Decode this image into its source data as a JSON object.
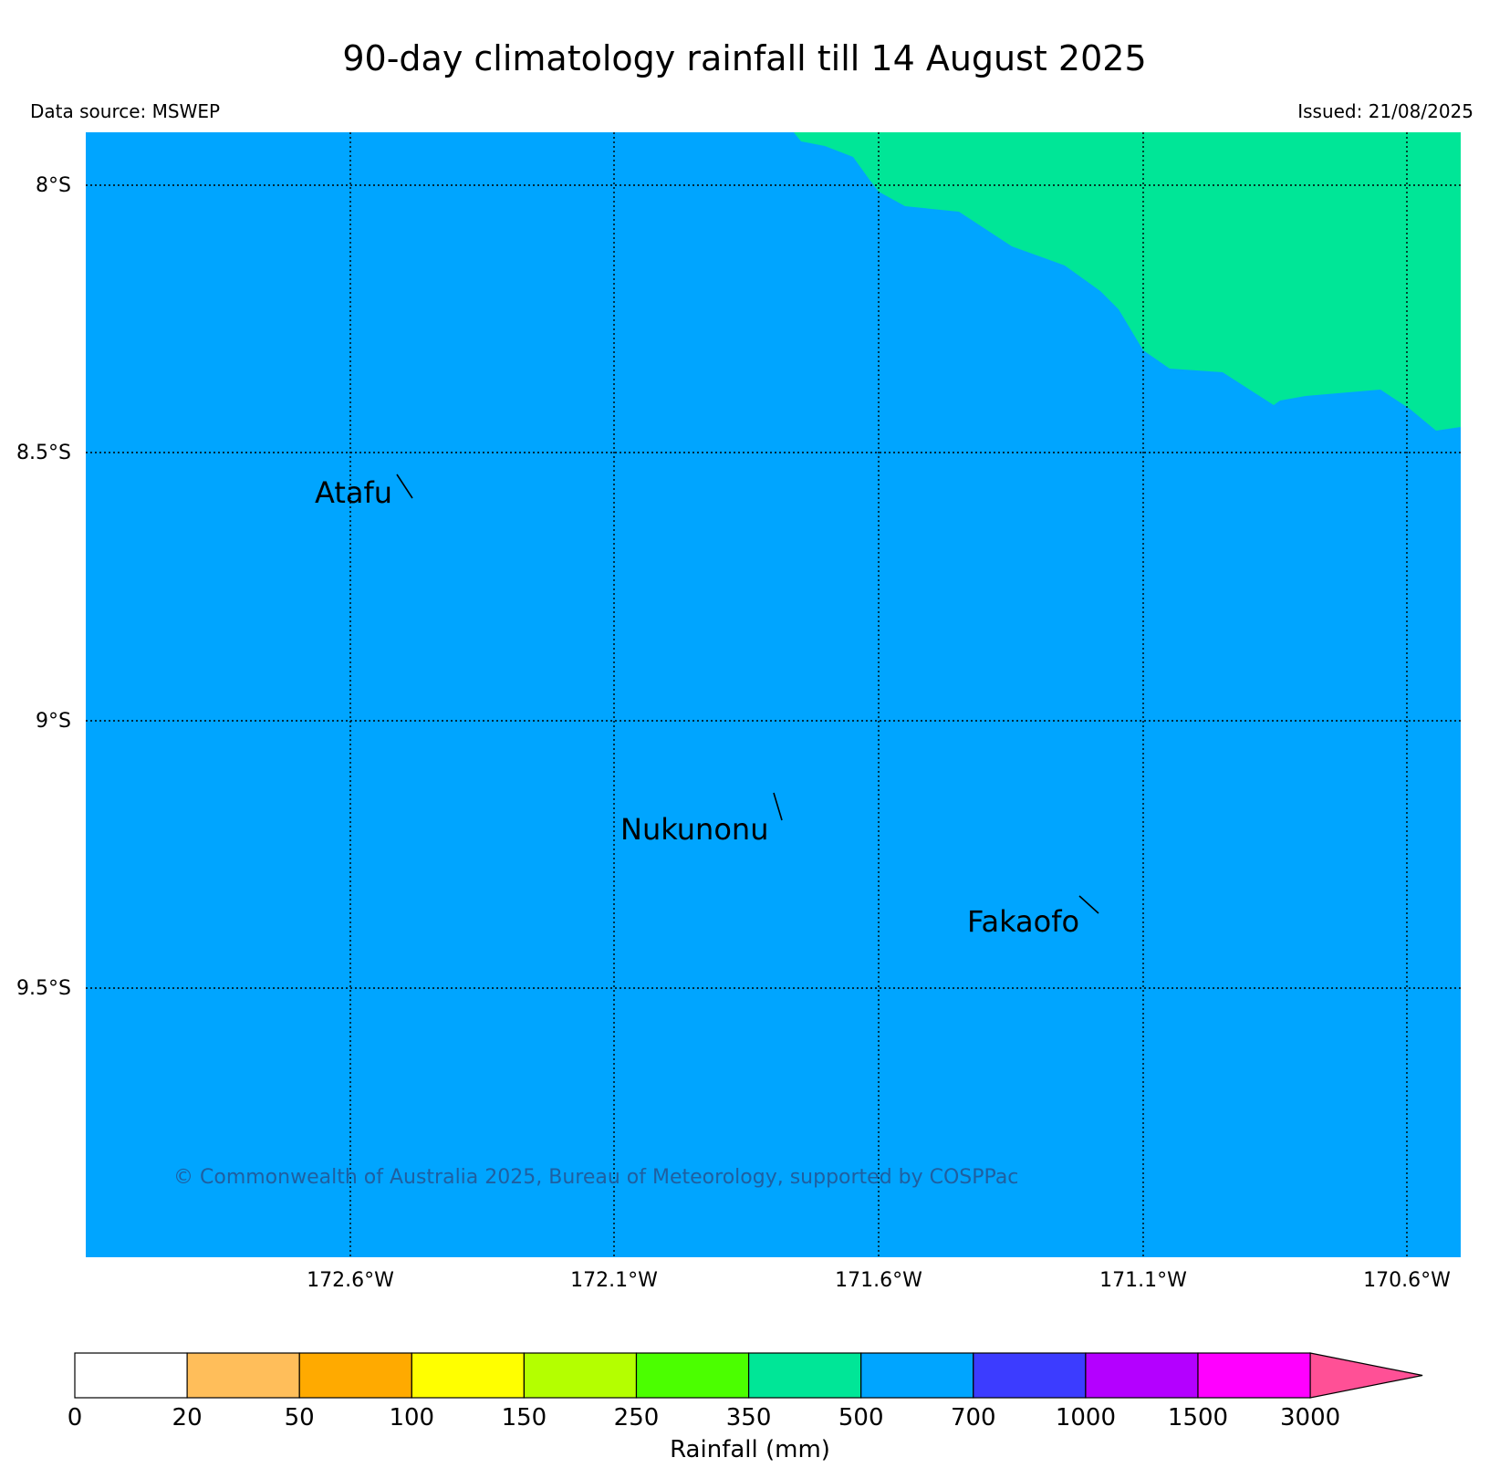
{
  "title": "90-day climatology rainfall till 14 August 2025",
  "data_source": "Data source: MSWEP",
  "issued": "Issued: 21/08/2025",
  "map": {
    "background_color": "#00a5ff",
    "region_350_500_color": "#00e697",
    "lat_ticks": [
      "8°S",
      "8.5°S",
      "9°S",
      "9.5°S"
    ],
    "lon_ticks": [
      "172.6°W",
      "172.1°W",
      "171.6°W",
      "171.1°W",
      "170.6°W"
    ],
    "places": [
      {
        "name": "Atafu"
      },
      {
        "name": "Nukunonu"
      },
      {
        "name": "Fakaofo"
      }
    ],
    "copyright": "© Commonwealth of Australia 2025, Bureau of Meteorology, supported by COSPPac"
  },
  "legend": {
    "label": "Rainfall (mm)",
    "ticks": [
      "0",
      "20",
      "50",
      "100",
      "150",
      "250",
      "350",
      "500",
      "700",
      "1000",
      "1500",
      "3000"
    ],
    "colors": [
      "#ffffff",
      "#ffbe5a",
      "#ffaa00",
      "#ffff00",
      "#b4ff00",
      "#4bff00",
      "#00e697",
      "#00a5ff",
      "#3c3cff",
      "#b400ff",
      "#ff00ff"
    ],
    "extend_color": "#ff5096"
  }
}
